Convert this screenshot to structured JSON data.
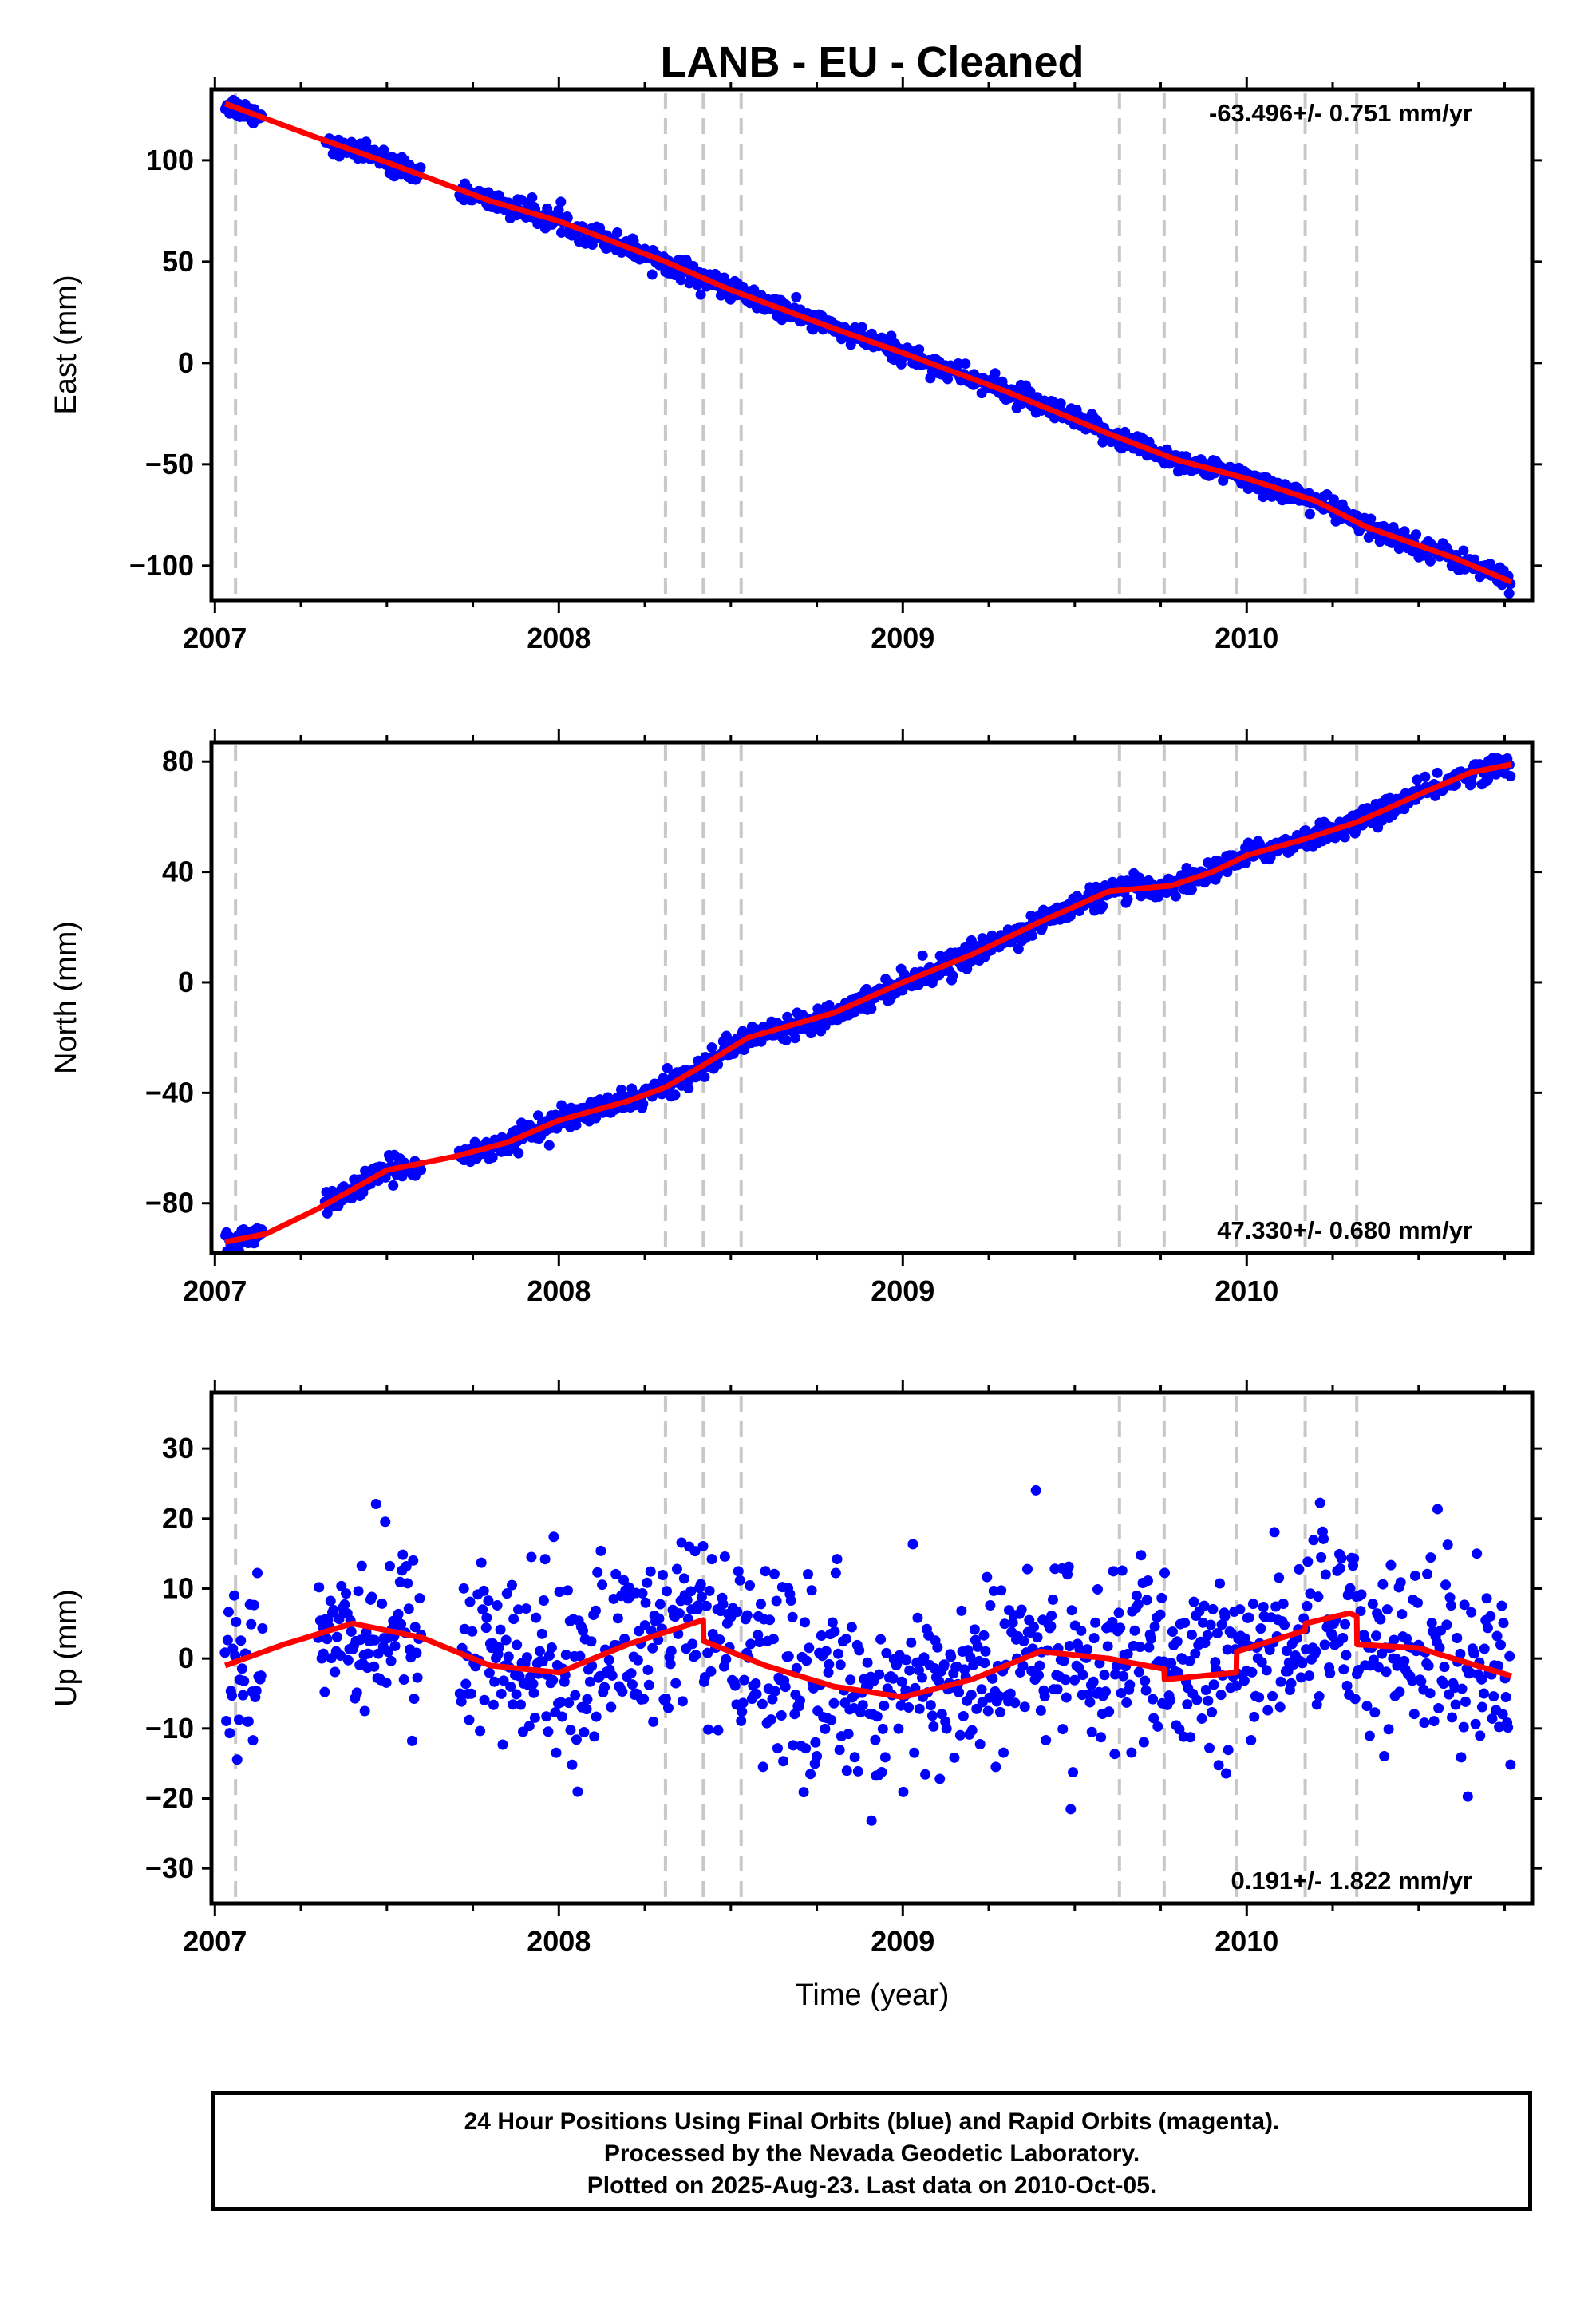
{
  "title": "LANB  - EU - Cleaned",
  "xlabel": "Time (year)",
  "footer": {
    "line1": "24 Hour Positions Using Final Orbits (blue) and Rapid Orbits (magenta).",
    "line2": "Processed by the Nevada Geodetic Laboratory.",
    "line3": "Plotted on 2025-Aug-23. Last data on 2010-Oct-05."
  },
  "colors": {
    "data": "#0000ff",
    "model": "#ff0000",
    "steps": "#c8c8c8",
    "frame": "#000000"
  },
  "chart_data": [
    {
      "type": "scatter",
      "name": "east",
      "ylabel": "East (mm)",
      "rate": "-63.496+/- 0.751 mm/yr",
      "rate_position": "top-right",
      "xlim": [
        2006.99,
        2010.83
      ],
      "ylim": [
        -117,
        135
      ],
      "xticks": [
        2007,
        2008,
        2009,
        2010
      ],
      "yticks": [
        -100,
        -50,
        0,
        50,
        100
      ],
      "steps": [
        2007.06,
        2008.31,
        2008.42,
        2008.53,
        2009.63,
        2009.76,
        2009.97,
        2010.17,
        2010.32
      ],
      "data_span": [
        2007.03,
        2010.77
      ],
      "gaps": [
        [
          2007.14,
          2007.32
        ],
        [
          2007.6,
          2007.71
        ]
      ],
      "noise_mm": 2.6,
      "model": {
        "x": [
          2007.03,
          2007.3,
          2007.5,
          2007.8,
          2008.0,
          2008.31,
          2008.5,
          2008.8,
          2009.0,
          2009.3,
          2009.6,
          2009.8,
          2010.0,
          2010.2,
          2010.35,
          2010.6,
          2010.77
        ],
        "y": [
          128,
          111,
          99,
          80,
          70,
          50,
          36,
          17,
          5,
          -14,
          -35,
          -48,
          -57,
          -68,
          -81,
          -96,
          -108
        ]
      }
    },
    {
      "type": "scatter",
      "name": "north",
      "ylabel": "North (mm)",
      "rate": "47.330+/- 0.680 mm/yr",
      "rate_position": "bottom-right",
      "xlim": [
        2006.99,
        2010.83
      ],
      "ylim": [
        -98,
        87
      ],
      "xticks": [
        2007,
        2008,
        2009,
        2010
      ],
      "yticks": [
        -80,
        -40,
        0,
        40,
        80
      ],
      "steps": [
        2007.06,
        2008.31,
        2008.42,
        2008.53,
        2009.63,
        2009.76,
        2009.97,
        2010.17,
        2010.32
      ],
      "data_span": [
        2007.03,
        2010.77
      ],
      "gaps": [
        [
          2007.14,
          2007.32
        ],
        [
          2007.6,
          2007.71
        ]
      ],
      "noise_mm": 2.0,
      "model": {
        "x": [
          2007.03,
          2007.15,
          2007.3,
          2007.5,
          2007.7,
          2007.85,
          2008.0,
          2008.2,
          2008.31,
          2008.42,
          2008.55,
          2008.8,
          2009.0,
          2009.2,
          2009.4,
          2009.6,
          2009.78,
          2009.9,
          2010.0,
          2010.17,
          2010.32,
          2010.5,
          2010.65,
          2010.77
        ],
        "y": [
          -94,
          -91,
          -82,
          -68,
          -63,
          -58,
          -50,
          -43,
          -38,
          -30,
          -20,
          -11,
          0,
          10,
          22,
          33,
          35,
          40,
          46,
          52,
          58,
          68,
          76,
          79
        ]
      }
    },
    {
      "type": "scatter",
      "name": "up",
      "ylabel": "Up (mm)",
      "rate": "0.191+/- 1.822 mm/yr",
      "rate_position": "bottom-right",
      "xlim": [
        2006.99,
        2010.83
      ],
      "ylim": [
        -35,
        38
      ],
      "xticks": [
        2007,
        2008,
        2009,
        2010
      ],
      "yticks": [
        -30,
        -20,
        -10,
        0,
        10,
        20,
        30
      ],
      "steps": [
        2007.06,
        2008.31,
        2008.42,
        2008.53,
        2009.63,
        2009.76,
        2009.97,
        2010.17,
        2010.32
      ],
      "data_span": [
        2007.03,
        2010.77
      ],
      "gaps": [
        [
          2007.14,
          2007.3
        ],
        [
          2007.6,
          2007.71
        ]
      ],
      "noise_mm": 6.5,
      "model": {
        "x": [
          2007.03,
          2007.2,
          2007.4,
          2007.6,
          2007.8,
          2008.0,
          2008.2,
          2008.42,
          2008.421,
          2008.6,
          2008.8,
          2009.0,
          2009.2,
          2009.4,
          2009.6,
          2009.76,
          2009.761,
          2009.97,
          2009.971,
          2010.17,
          2010.171,
          2010.3,
          2010.32,
          2010.321,
          2010.5,
          2010.77
        ],
        "y": [
          -1,
          2,
          5,
          3,
          -1,
          -2,
          2,
          5.5,
          2.5,
          -1,
          -4,
          -5.5,
          -3,
          1,
          0,
          -1.5,
          -3,
          -2,
          1,
          4,
          5,
          6.5,
          6,
          2,
          1.5,
          -2.5
        ]
      }
    }
  ]
}
